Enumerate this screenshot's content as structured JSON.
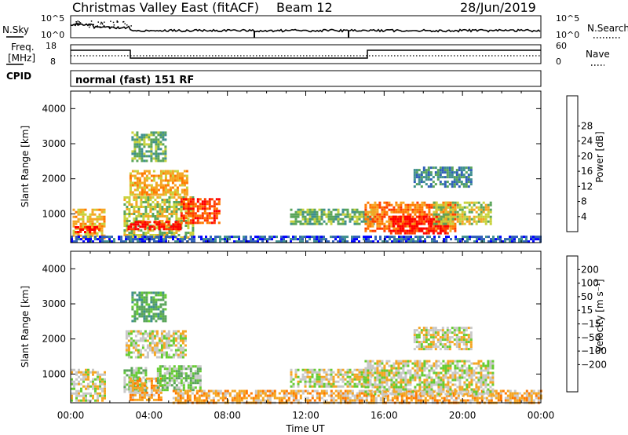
{
  "header": {
    "title": "Christmas Valley East (fitACF)",
    "beam": "Beam 12",
    "date": "28/Jun/2019"
  },
  "params": {
    "nsky_label": "N.Sky",
    "nsearch_label": "N.Search",
    "freq_label_1": "Freq.",
    "freq_label_2": "[MHz]",
    "nave_label": "Nave",
    "cpid_label": "CPID",
    "mode_text": "normal (fast) 151 RF",
    "noise_ticks": [
      "10^5",
      "10^0"
    ],
    "freq_ticks": [
      "18",
      "8"
    ],
    "nave_ticks": [
      "60",
      "0"
    ]
  },
  "chart_data": [
    {
      "type": "heatmap",
      "name": "power-panel",
      "ylabel": "Slant Range [km]",
      "xlabel": "Time UT",
      "yticks": [
        1000,
        2000,
        3000,
        4000
      ],
      "ylim": [
        180,
        4500
      ],
      "xlim": [
        0,
        24
      ],
      "xtick_labels": [
        "00:00",
        "04:00",
        "08:00",
        "12:00",
        "16:00",
        "20:00",
        "00:00"
      ],
      "colorbar": {
        "label": "Power [dB]",
        "ticks": [
          "4",
          "8",
          "12",
          "16",
          "20",
          "24",
          "28"
        ],
        "colors": [
          "#0000ff",
          "#2f5fb8",
          "#3f8f8f",
          "#5aa55a",
          "#c8d23c",
          "#f5a623",
          "#ff7800",
          "#ff3c00",
          "#ff0000"
        ]
      },
      "regions": [
        {
          "t": [
            0.1,
            1.7
          ],
          "r": [
            300,
            1150
          ],
          "c": 5
        },
        {
          "t": [
            0.2,
            1.5
          ],
          "r": [
            450,
            650
          ],
          "c": 8
        },
        {
          "t": [
            2.7,
            6.3
          ],
          "r": [
            350,
            1500
          ],
          "c": 4
        },
        {
          "t": [
            2.9,
            5.6
          ],
          "r": [
            550,
            800
          ],
          "c": 8
        },
        {
          "t": [
            5.6,
            7.6
          ],
          "r": [
            750,
            1450
          ],
          "c": 7
        },
        {
          "t": [
            3.0,
            5.9
          ],
          "r": [
            1550,
            2250
          ],
          "c": 5
        },
        {
          "t": [
            3.1,
            4.9
          ],
          "r": [
            2500,
            3350
          ],
          "c": 3
        },
        {
          "t": [
            11.2,
            15.5
          ],
          "r": [
            700,
            1150
          ],
          "c": 3
        },
        {
          "t": [
            15.0,
            19.6
          ],
          "r": [
            500,
            1350
          ],
          "c": 6
        },
        {
          "t": [
            16.3,
            19.3
          ],
          "r": [
            450,
            950
          ],
          "c": 8
        },
        {
          "t": [
            18.5,
            21.5
          ],
          "r": [
            700,
            1350
          ],
          "c": 4
        },
        {
          "t": [
            17.5,
            20.5
          ],
          "r": [
            1800,
            2350
          ],
          "c": 2
        },
        {
          "t": [
            0.0,
            24.0
          ],
          "r": [
            180,
            380
          ],
          "c": 1
        }
      ]
    },
    {
      "type": "heatmap",
      "name": "velocity-panel",
      "ylabel": "Slant Range [km]",
      "xlabel": "Time UT",
      "yticks": [
        1000,
        2000,
        3000,
        4000
      ],
      "ylim": [
        180,
        4500
      ],
      "xlim": [
        0,
        24
      ],
      "xtick_labels": [
        "00:00",
        "04:00",
        "08:00",
        "12:00",
        "16:00",
        "20:00",
        "00:00"
      ],
      "colorbar": {
        "label": "Velocity [m s⁻¹]",
        "ticks": [
          "200",
          "100",
          "50",
          "15",
          "−15",
          "−50",
          "−100",
          "−200"
        ],
        "colors": [
          "#0000ff",
          "#2f5fb8",
          "#3f8f8f",
          "#5aa55a",
          "#66cc33",
          "#c8c8c8",
          "#f5a623",
          "#ff7800",
          "#ff3c00",
          "#ff0000"
        ]
      },
      "regions": [
        {
          "t": [
            0.0,
            1.8
          ],
          "r": [
            250,
            1150
          ],
          "c": 5
        },
        {
          "t": [
            2.7,
            3.9
          ],
          "r": [
            500,
            1200
          ],
          "c": 4
        },
        {
          "t": [
            3.0,
            4.6
          ],
          "r": [
            250,
            900
          ],
          "c": 6
        },
        {
          "t": [
            4.4,
            6.6
          ],
          "r": [
            550,
            1250
          ],
          "c": 4
        },
        {
          "t": [
            2.8,
            5.9
          ],
          "r": [
            1500,
            2250
          ],
          "c": 5
        },
        {
          "t": [
            3.1,
            4.9
          ],
          "r": [
            2500,
            3350
          ],
          "c": 3
        },
        {
          "t": [
            5.2,
            24.0
          ],
          "r": [
            180,
            550
          ],
          "c": 6
        },
        {
          "t": [
            11.2,
            15.3
          ],
          "r": [
            650,
            1150
          ],
          "c": 5
        },
        {
          "t": [
            15.0,
            21.5
          ],
          "r": [
            450,
            1400
          ],
          "c": 5
        },
        {
          "t": [
            17.5,
            20.5
          ],
          "r": [
            1700,
            2350
          ],
          "c": 5
        }
      ]
    }
  ]
}
